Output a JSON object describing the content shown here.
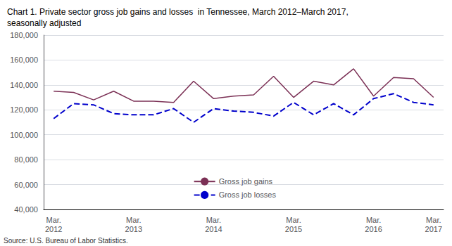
{
  "chart_data": {
    "type": "line",
    "title": "Chart 1. Private sector gross job gains and losses  in Tennessee, March 2012–March 2017,\nseasonally adjusted",
    "source": "Source: U.S. Bureau of Labor Statistics.",
    "categories": [
      "Mar.\n2012",
      null,
      null,
      null,
      "Mar.\n2013",
      null,
      null,
      null,
      "Mar.\n2014",
      null,
      null,
      null,
      "Mar.\n2015",
      null,
      null,
      null,
      "Mar.\n2016",
      null,
      null,
      "Mar.\n2017"
    ],
    "series": [
      {
        "name": "Gross job gains",
        "color": "#7B3055",
        "line_style": "solid",
        "values": [
          135000,
          134000,
          128000,
          135000,
          127000,
          127000,
          126000,
          143000,
          129000,
          131000,
          132000,
          147000,
          130000,
          143000,
          140000,
          153000,
          131000,
          146000,
          145000,
          130000
        ]
      },
      {
        "name": "Gross job losses",
        "color": "#0000CC",
        "line_style": "dashed",
        "values": [
          113000,
          125000,
          124000,
          117000,
          116000,
          116000,
          121000,
          110000,
          121000,
          119000,
          118000,
          115000,
          126000,
          116000,
          125000,
          116000,
          129000,
          133000,
          126000,
          124000
        ]
      }
    ],
    "ylim": [
      40000,
      180000
    ],
    "yticks": [
      {
        "value": 40000,
        "label": "40,000"
      },
      {
        "value": 60000,
        "label": "60,000"
      },
      {
        "value": 80000,
        "label": "80,000"
      },
      {
        "value": 100000,
        "label": "100,000"
      },
      {
        "value": 120000,
        "label": "120,000"
      },
      {
        "value": 140000,
        "label": "140,000"
      },
      {
        "value": 160000,
        "label": "160,000"
      },
      {
        "value": 180000,
        "label": "180,000"
      }
    ],
    "grid": true,
    "legend": "bottom"
  }
}
